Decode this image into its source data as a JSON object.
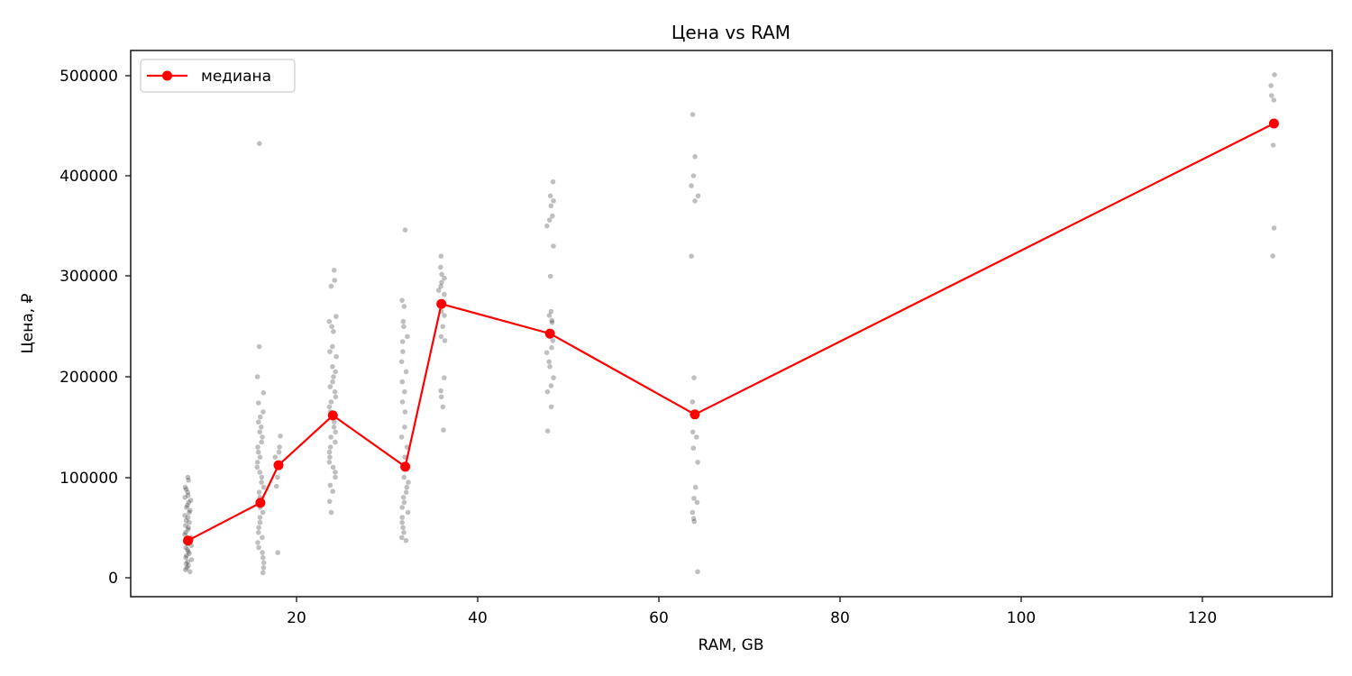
{
  "chart_data": {
    "type": "scatter",
    "title": "Цена vs RAM",
    "xlabel": "RAM, GB",
    "ylabel": "Цена, ₽",
    "xlim": [
      1.7,
      134.4
    ],
    "ylim": [
      -19000,
      524000
    ],
    "xticks": [
      20,
      40,
      60,
      80,
      100,
      120
    ],
    "yticks": [
      0,
      100000,
      200000,
      300000,
      400000,
      500000
    ],
    "grid": false,
    "legend": {
      "position": "upper left",
      "entries": [
        "медиана"
      ]
    },
    "series": [
      {
        "name": "медиана",
        "kind": "line+marker",
        "color": "#ff0000",
        "x": [
          8,
          16,
          18,
          24,
          32,
          36,
          48,
          64,
          128
        ],
        "y": [
          37000,
          74500,
          112000,
          161500,
          110500,
          272500,
          243000,
          162500,
          452000
        ]
      },
      {
        "name": "points",
        "kind": "scatter",
        "color": "#000000",
        "alpha": 0.25,
        "groups": [
          {
            "x": 8,
            "y": [
              100000,
              97000,
              90000,
              88000,
              85000,
              82000,
              80000,
              77000,
              75000,
              72000,
              70000,
              67000,
              65000,
              62000,
              60000,
              57000,
              55000,
              52000,
              50000,
              48000,
              45000,
              43000,
              40000,
              38000,
              36000,
              34000,
              32000,
              30000,
              28000,
              26000,
              24000,
              22000,
              20000,
              18000,
              16000,
              14000,
              12000,
              10000,
              8000,
              6000
            ]
          },
          {
            "x": 16,
            "y": [
              432000,
              230000,
              200000,
              184000,
              174000,
              165000,
              160000,
              155000,
              150000,
              145000,
              140000,
              135000,
              130000,
              125000,
              120000,
              115000,
              110000,
              105000,
              100000,
              95000,
              90000,
              85000,
              80000,
              75000,
              70000,
              65000,
              60000,
              55000,
              50000,
              45000,
              40000,
              35000,
              30000,
              25000,
              20000,
              15000,
              10000,
              5000
            ]
          },
          {
            "x": 18,
            "y": [
              141000,
              130000,
              125000,
              120000,
              112000,
              100000,
              91000,
              25000
            ]
          },
          {
            "x": 24,
            "y": [
              306000,
              296000,
              290000,
              260000,
              255000,
              250000,
              245000,
              230000,
              225000,
              220000,
              210000,
              205000,
              200000,
              195000,
              190000,
              185000,
              180000,
              175000,
              170000,
              165000,
              160000,
              155000,
              150000,
              145000,
              140000,
              135000,
              130000,
              125000,
              120000,
              115000,
              110000,
              105000,
              100000,
              92000,
              86000,
              76000,
              65000
            ]
          },
          {
            "x": 32,
            "y": [
              346000,
              276000,
              270000,
              255000,
              250000,
              240000,
              235000,
              225000,
              215000,
              205000,
              195000,
              185000,
              175000,
              165000,
              150000,
              140000,
              130000,
              120000,
              110000,
              100000,
              95000,
              90000,
              85000,
              80000,
              75000,
              70000,
              65000,
              60000,
              55000,
              50000,
              45000,
              40000,
              37000
            ]
          },
          {
            "x": 36,
            "y": [
              320000,
              309000,
              302000,
              298000,
              294000,
              290000,
              286000,
              282000,
              272000,
              265000,
              261000,
              250000,
              240000,
              236000,
              199000,
              186000,
              180000,
              170000,
              147000
            ]
          },
          {
            "x": 48,
            "y": [
              394000,
              380000,
              375000,
              370000,
              360000,
              356000,
              350000,
              330000,
              300000,
              265000,
              261000,
              256000,
              254000,
              243000,
              240000,
              236000,
              229000,
              224000,
              215000,
              210000,
              199000,
              191000,
              185000,
              170000,
              146000
            ]
          },
          {
            "x": 64,
            "y": [
              461000,
              419000,
              400000,
              390000,
              380000,
              375000,
              320000,
              199000,
              175000,
              162500,
              145000,
              140000,
              129000,
              115000,
              90000,
              79000,
              75000,
              65000,
              59000,
              56000,
              6000
            ]
          },
          {
            "x": 128,
            "y": [
              500500,
              489700,
              479800,
              475300,
              452000,
              430500,
              348000,
              320200
            ]
          }
        ]
      }
    ]
  },
  "labels": {
    "title": "Цена vs RAM",
    "xlabel": "RAM, GB",
    "ylabel": "Цена, ₽",
    "legend_median": "медиана",
    "xticks": [
      "20",
      "40",
      "60",
      "80",
      "100",
      "120"
    ],
    "yticks": [
      "0",
      "100000",
      "200000",
      "300000",
      "400000",
      "500000"
    ]
  }
}
